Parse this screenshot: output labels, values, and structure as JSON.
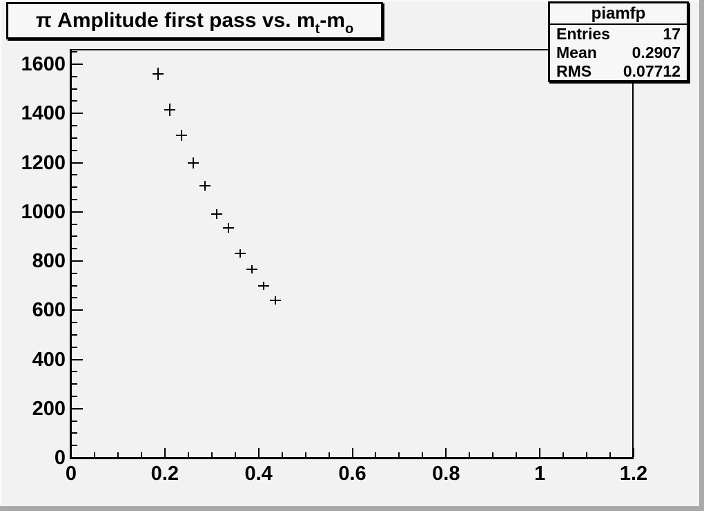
{
  "title": {
    "pi": "π",
    "main": " Amplitude first pass vs. m",
    "sub1": "t",
    "mid": "-m",
    "sub2": "o"
  },
  "stats": {
    "title": "piamfp",
    "rows": [
      {
        "label": "Entries",
        "value": "17"
      },
      {
        "label": "Mean",
        "value": "0.2907"
      },
      {
        "label": "RMS",
        "value": "0.07712"
      }
    ]
  },
  "colors": {
    "background": "#f2f2f2",
    "box_fill": "#f7f7f7",
    "line": "#000000",
    "bevel_border": "#a9a9a9"
  },
  "chart_data": {
    "type": "scatter",
    "marker": "plus-with-error-bars",
    "title": "π Amplitude first pass vs. m_t-m_o",
    "xlabel": "",
    "ylabel": "",
    "grid": false,
    "legend": null,
    "xlim": [
      0,
      1.2
    ],
    "ylim": [
      0,
      1659
    ],
    "xerr_half_width": 0.0125,
    "points": [
      {
        "x": 0.186,
        "y": 1560,
        "yerr": 25
      },
      {
        "x": 0.211,
        "y": 1415,
        "yerr": 24
      },
      {
        "x": 0.236,
        "y": 1310,
        "yerr": 23
      },
      {
        "x": 0.261,
        "y": 1200,
        "yerr": 22
      },
      {
        "x": 0.286,
        "y": 1105,
        "yerr": 21
      },
      {
        "x": 0.311,
        "y": 990,
        "yerr": 20
      },
      {
        "x": 0.336,
        "y": 935,
        "yerr": 20
      },
      {
        "x": 0.361,
        "y": 830,
        "yerr": 18
      },
      {
        "x": 0.386,
        "y": 765,
        "yerr": 18
      },
      {
        "x": 0.411,
        "y": 700,
        "yerr": 17
      },
      {
        "x": 0.436,
        "y": 640,
        "yerr": 16
      }
    ],
    "x_axis": {
      "major_step": 0.2,
      "minor_step": 0.05,
      "labels": [
        "0",
        "0.2",
        "0.4",
        "0.6",
        "0.8",
        "1",
        "1.2"
      ],
      "major_tick_len": 13,
      "minor_tick_len": 7
    },
    "y_axis": {
      "major_step": 200,
      "minor_step": 50,
      "labels": [
        "0",
        "200",
        "400",
        "600",
        "800",
        "1000",
        "1200",
        "1400",
        "1600"
      ],
      "major_tick_len": 16,
      "minor_tick_len": 8
    }
  }
}
